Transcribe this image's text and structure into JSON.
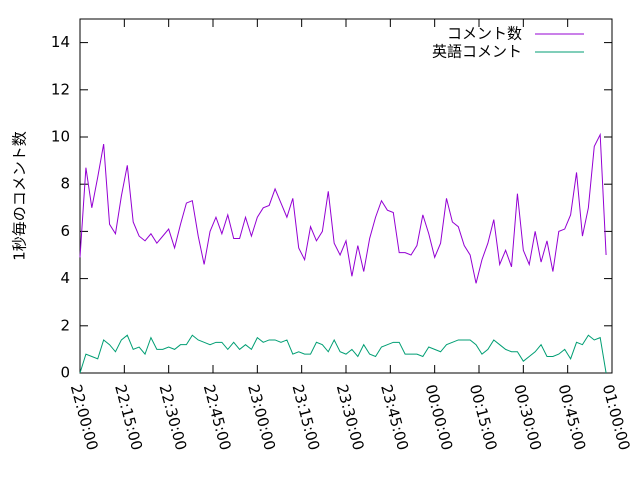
{
  "chart_data": {
    "type": "line",
    "ylabel": "1秒毎のコメント数",
    "x": [
      "22:00:00",
      "22:02:00",
      "22:04:00",
      "22:06:00",
      "22:08:00",
      "22:10:00",
      "22:12:00",
      "22:14:00",
      "22:16:00",
      "22:18:00",
      "22:20:00",
      "22:22:00",
      "22:24:00",
      "22:26:00",
      "22:28:00",
      "22:30:00",
      "22:32:00",
      "22:34:00",
      "22:36:00",
      "22:38:00",
      "22:40:00",
      "22:42:00",
      "22:44:00",
      "22:46:00",
      "22:48:00",
      "22:50:00",
      "22:52:00",
      "22:54:00",
      "22:56:00",
      "22:58:00",
      "23:00:00",
      "23:02:00",
      "23:04:00",
      "23:06:00",
      "23:08:00",
      "23:10:00",
      "23:12:00",
      "23:14:00",
      "23:16:00",
      "23:18:00",
      "23:20:00",
      "23:22:00",
      "23:24:00",
      "23:26:00",
      "23:28:00",
      "23:30:00",
      "23:32:00",
      "23:34:00",
      "23:36:00",
      "23:38:00",
      "23:40:00",
      "23:42:00",
      "23:44:00",
      "23:46:00",
      "23:48:00",
      "23:50:00",
      "23:52:00",
      "23:54:00",
      "23:56:00",
      "23:58:00",
      "00:00:00",
      "00:02:00",
      "00:04:00",
      "00:06:00",
      "00:08:00",
      "00:10:00",
      "00:12:00",
      "00:14:00",
      "00:16:00",
      "00:18:00",
      "00:20:00",
      "00:22:00",
      "00:24:00",
      "00:26:00",
      "00:28:00",
      "00:30:00",
      "00:32:00",
      "00:34:00",
      "00:36:00",
      "00:38:00",
      "00:40:00",
      "00:42:00",
      "00:44:00",
      "00:46:00",
      "00:48:00",
      "00:50:00",
      "00:52:00",
      "00:54:00",
      "00:56:00",
      "00:58:00"
    ],
    "series": [
      {
        "name": "コメント数",
        "color": "#9400d3",
        "values": [
          4.9,
          8.7,
          7.0,
          8.3,
          9.7,
          6.3,
          5.9,
          7.5,
          8.8,
          6.4,
          5.8,
          5.6,
          5.9,
          5.5,
          5.8,
          6.1,
          5.3,
          6.3,
          7.2,
          7.3,
          5.8,
          4.6,
          6.0,
          6.6,
          5.9,
          6.7,
          5.7,
          5.7,
          6.6,
          5.8,
          6.6,
          7.0,
          7.1,
          7.8,
          7.2,
          6.6,
          7.4,
          5.3,
          4.8,
          6.2,
          5.6,
          6.0,
          7.7,
          5.5,
          5.0,
          5.6,
          4.1,
          5.4,
          4.3,
          5.7,
          6.6,
          7.3,
          6.9,
          6.8,
          5.1,
          5.1,
          5.0,
          5.4,
          6.7,
          5.9,
          4.9,
          5.5,
          7.4,
          6.4,
          6.2,
          5.4,
          5.0,
          3.8,
          4.8,
          5.5,
          6.5,
          4.6,
          5.2,
          4.5,
          7.6,
          5.2,
          4.6,
          6.0,
          4.7,
          5.6,
          4.3,
          6.0,
          6.1,
          6.7,
          8.5,
          5.8,
          7.0,
          9.6,
          10.1,
          5.0
        ]
      },
      {
        "name": "英語コメント",
        "color": "#009e73",
        "values": [
          0.0,
          0.8,
          0.7,
          0.6,
          1.4,
          1.2,
          0.9,
          1.4,
          1.6,
          1.0,
          1.1,
          0.8,
          1.5,
          1.0,
          1.0,
          1.1,
          1.0,
          1.2,
          1.2,
          1.6,
          1.4,
          1.3,
          1.2,
          1.3,
          1.3,
          1.0,
          1.3,
          1.0,
          1.2,
          1.0,
          1.5,
          1.3,
          1.4,
          1.4,
          1.3,
          1.4,
          0.8,
          0.9,
          0.8,
          0.8,
          1.3,
          1.2,
          0.9,
          1.4,
          0.9,
          0.8,
          1.0,
          0.7,
          1.2,
          0.8,
          0.7,
          1.1,
          1.2,
          1.3,
          1.3,
          0.8,
          0.8,
          0.8,
          0.7,
          1.1,
          1.0,
          0.9,
          1.2,
          1.3,
          1.4,
          1.4,
          1.4,
          1.2,
          0.8,
          1.0,
          1.4,
          1.2,
          1.0,
          0.9,
          0.9,
          0.5,
          0.7,
          0.9,
          1.2,
          0.7,
          0.7,
          0.8,
          1.0,
          0.6,
          1.3,
          1.2,
          1.6,
          1.4,
          1.5,
          0.0
        ]
      }
    ],
    "xlim": [
      "22:00:00",
      "01:00:00"
    ],
    "xticks": [
      "22:00:00",
      "22:15:00",
      "22:30:00",
      "22:45:00",
      "23:00:00",
      "23:15:00",
      "23:30:00",
      "23:45:00",
      "00:00:00",
      "00:15:00",
      "00:30:00",
      "00:45:00",
      "01:00:00"
    ],
    "ylim": [
      0,
      15
    ],
    "yticks": [
      0,
      2,
      4,
      6,
      8,
      10,
      12,
      14
    ],
    "legend": "upper right"
  }
}
